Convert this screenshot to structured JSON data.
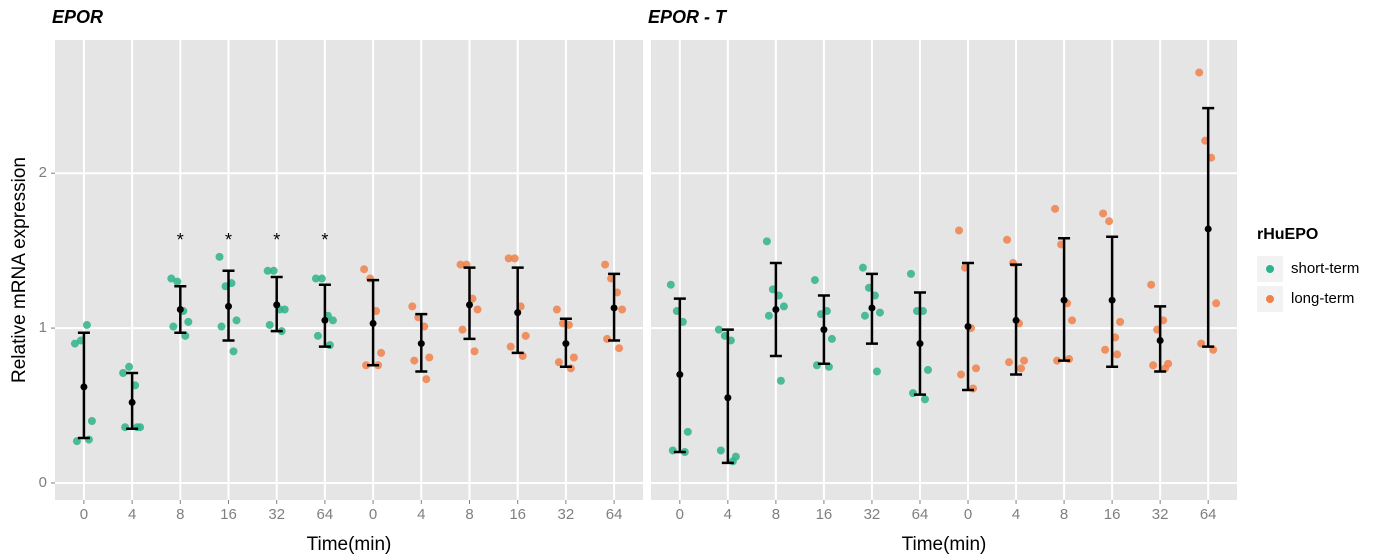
{
  "chart_data": [
    {
      "type": "dot_errorbar",
      "title": "EPOR",
      "x_label": "Time(min)",
      "y_label": "Relative mRNA expression",
      "legend_title": "rHuEPO",
      "legend": "right",
      "grid": true,
      "categories": [
        "0",
        "4",
        "8",
        "16",
        "32",
        "64",
        "0",
        "4",
        "8",
        "16",
        "32",
        "64"
      ],
      "ylim": [
        -0.11,
        2.86
      ],
      "yticks": [
        0,
        1,
        2
      ],
      "annotations": [
        {
          "text": "*",
          "category_index": 2,
          "y": 1.58
        },
        {
          "text": "*",
          "category_index": 3,
          "y": 1.58
        },
        {
          "text": "*",
          "category_index": 4,
          "y": 1.58
        },
        {
          "text": "*",
          "category_index": 5,
          "y": 1.58
        }
      ],
      "series": [
        {
          "name": "short-term",
          "color": "#2fb38c",
          "points": [
            [
              0.9,
              0.92,
              1.02,
              0.4,
              0.27,
              0.28
            ],
            [
              0.71,
              0.75,
              0.63,
              0.36,
              0.36,
              0.36
            ],
            [
              1.32,
              1.3,
              1.11,
              1.04,
              1.01,
              0.95
            ],
            [
              1.46,
              1.27,
              1.29,
              1.05,
              1.01,
              0.85
            ],
            [
              1.37,
              1.37,
              1.12,
              1.12,
              1.02,
              0.98
            ],
            [
              1.32,
              1.32,
              1.08,
              1.05,
              0.95,
              0.89
            ]
          ],
          "mean": [
            0.62,
            0.52,
            1.12,
            1.14,
            1.15,
            1.05
          ],
          "lower": [
            0.29,
            0.35,
            0.97,
            0.92,
            0.98,
            0.88
          ],
          "upper": [
            0.97,
            0.71,
            1.27,
            1.37,
            1.33,
            1.28
          ]
        },
        {
          "name": "long-term",
          "color": "#f0814a",
          "points": [
            [
              1.38,
              1.32,
              1.11,
              0.84,
              0.76,
              0.76
            ],
            [
              1.14,
              1.07,
              1.01,
              0.81,
              0.79,
              0.67
            ],
            [
              1.41,
              1.41,
              1.19,
              1.12,
              0.99,
              0.85
            ],
            [
              1.45,
              1.45,
              1.14,
              0.95,
              0.88,
              0.82
            ],
            [
              1.12,
              1.03,
              1.02,
              0.81,
              0.78,
              0.74
            ],
            [
              1.41,
              1.32,
              1.23,
              1.12,
              0.93,
              0.87
            ]
          ],
          "mean": [
            1.03,
            0.9,
            1.15,
            1.1,
            0.9,
            1.13
          ],
          "lower": [
            0.76,
            0.72,
            0.93,
            0.84,
            0.75,
            0.92
          ],
          "upper": [
            1.31,
            1.09,
            1.39,
            1.39,
            1.06,
            1.35
          ]
        }
      ]
    },
    {
      "type": "dot_errorbar",
      "title": "EPOR - T",
      "x_label": "Time(min)",
      "grid": true,
      "categories": [
        "0",
        "4",
        "8",
        "16",
        "32",
        "64",
        "0",
        "4",
        "8",
        "16",
        "32",
        "64"
      ],
      "ylim": [
        -0.11,
        2.86
      ],
      "yticks": [
        0,
        1,
        2
      ],
      "series": [
        {
          "name": "short-term",
          "color": "#2fb38c",
          "points": [
            [
              1.28,
              1.11,
              1.04,
              0.33,
              0.21,
              0.2
            ],
            [
              0.99,
              0.95,
              0.92,
              0.17,
              0.21,
              0.14
            ],
            [
              1.56,
              1.25,
              1.21,
              1.14,
              1.08,
              0.66
            ],
            [
              1.31,
              1.09,
              1.11,
              0.93,
              0.76,
              0.75
            ],
            [
              1.39,
              1.26,
              1.21,
              1.1,
              1.08,
              0.72
            ],
            [
              1.35,
              1.11,
              1.11,
              0.73,
              0.58,
              0.54
            ]
          ],
          "mean": [
            0.7,
            0.55,
            1.12,
            0.99,
            1.13,
            0.9
          ],
          "lower": [
            0.2,
            0.13,
            0.82,
            0.77,
            0.9,
            0.57
          ],
          "upper": [
            1.19,
            0.99,
            1.42,
            1.21,
            1.35,
            1.23
          ]
        },
        {
          "name": "long-term",
          "color": "#f0814a",
          "points": [
            [
              1.63,
              1.39,
              1.0,
              0.74,
              0.7,
              0.61
            ],
            [
              1.57,
              1.42,
              1.03,
              0.79,
              0.78,
              0.74
            ],
            [
              1.77,
              1.54,
              1.16,
              1.05,
              0.79,
              0.8
            ],
            [
              1.74,
              1.69,
              0.94,
              1.04,
              0.86,
              0.83
            ],
            [
              1.28,
              0.99,
              1.05,
              0.77,
              0.76,
              0.74
            ],
            [
              2.65,
              2.21,
              2.1,
              1.16,
              0.9,
              0.86
            ]
          ],
          "mean": [
            1.01,
            1.05,
            1.18,
            1.18,
            0.92,
            1.64
          ],
          "lower": [
            0.6,
            0.7,
            0.79,
            0.75,
            0.72,
            0.88
          ],
          "upper": [
            1.42,
            1.41,
            1.58,
            1.59,
            1.14,
            2.42
          ]
        }
      ]
    }
  ]
}
